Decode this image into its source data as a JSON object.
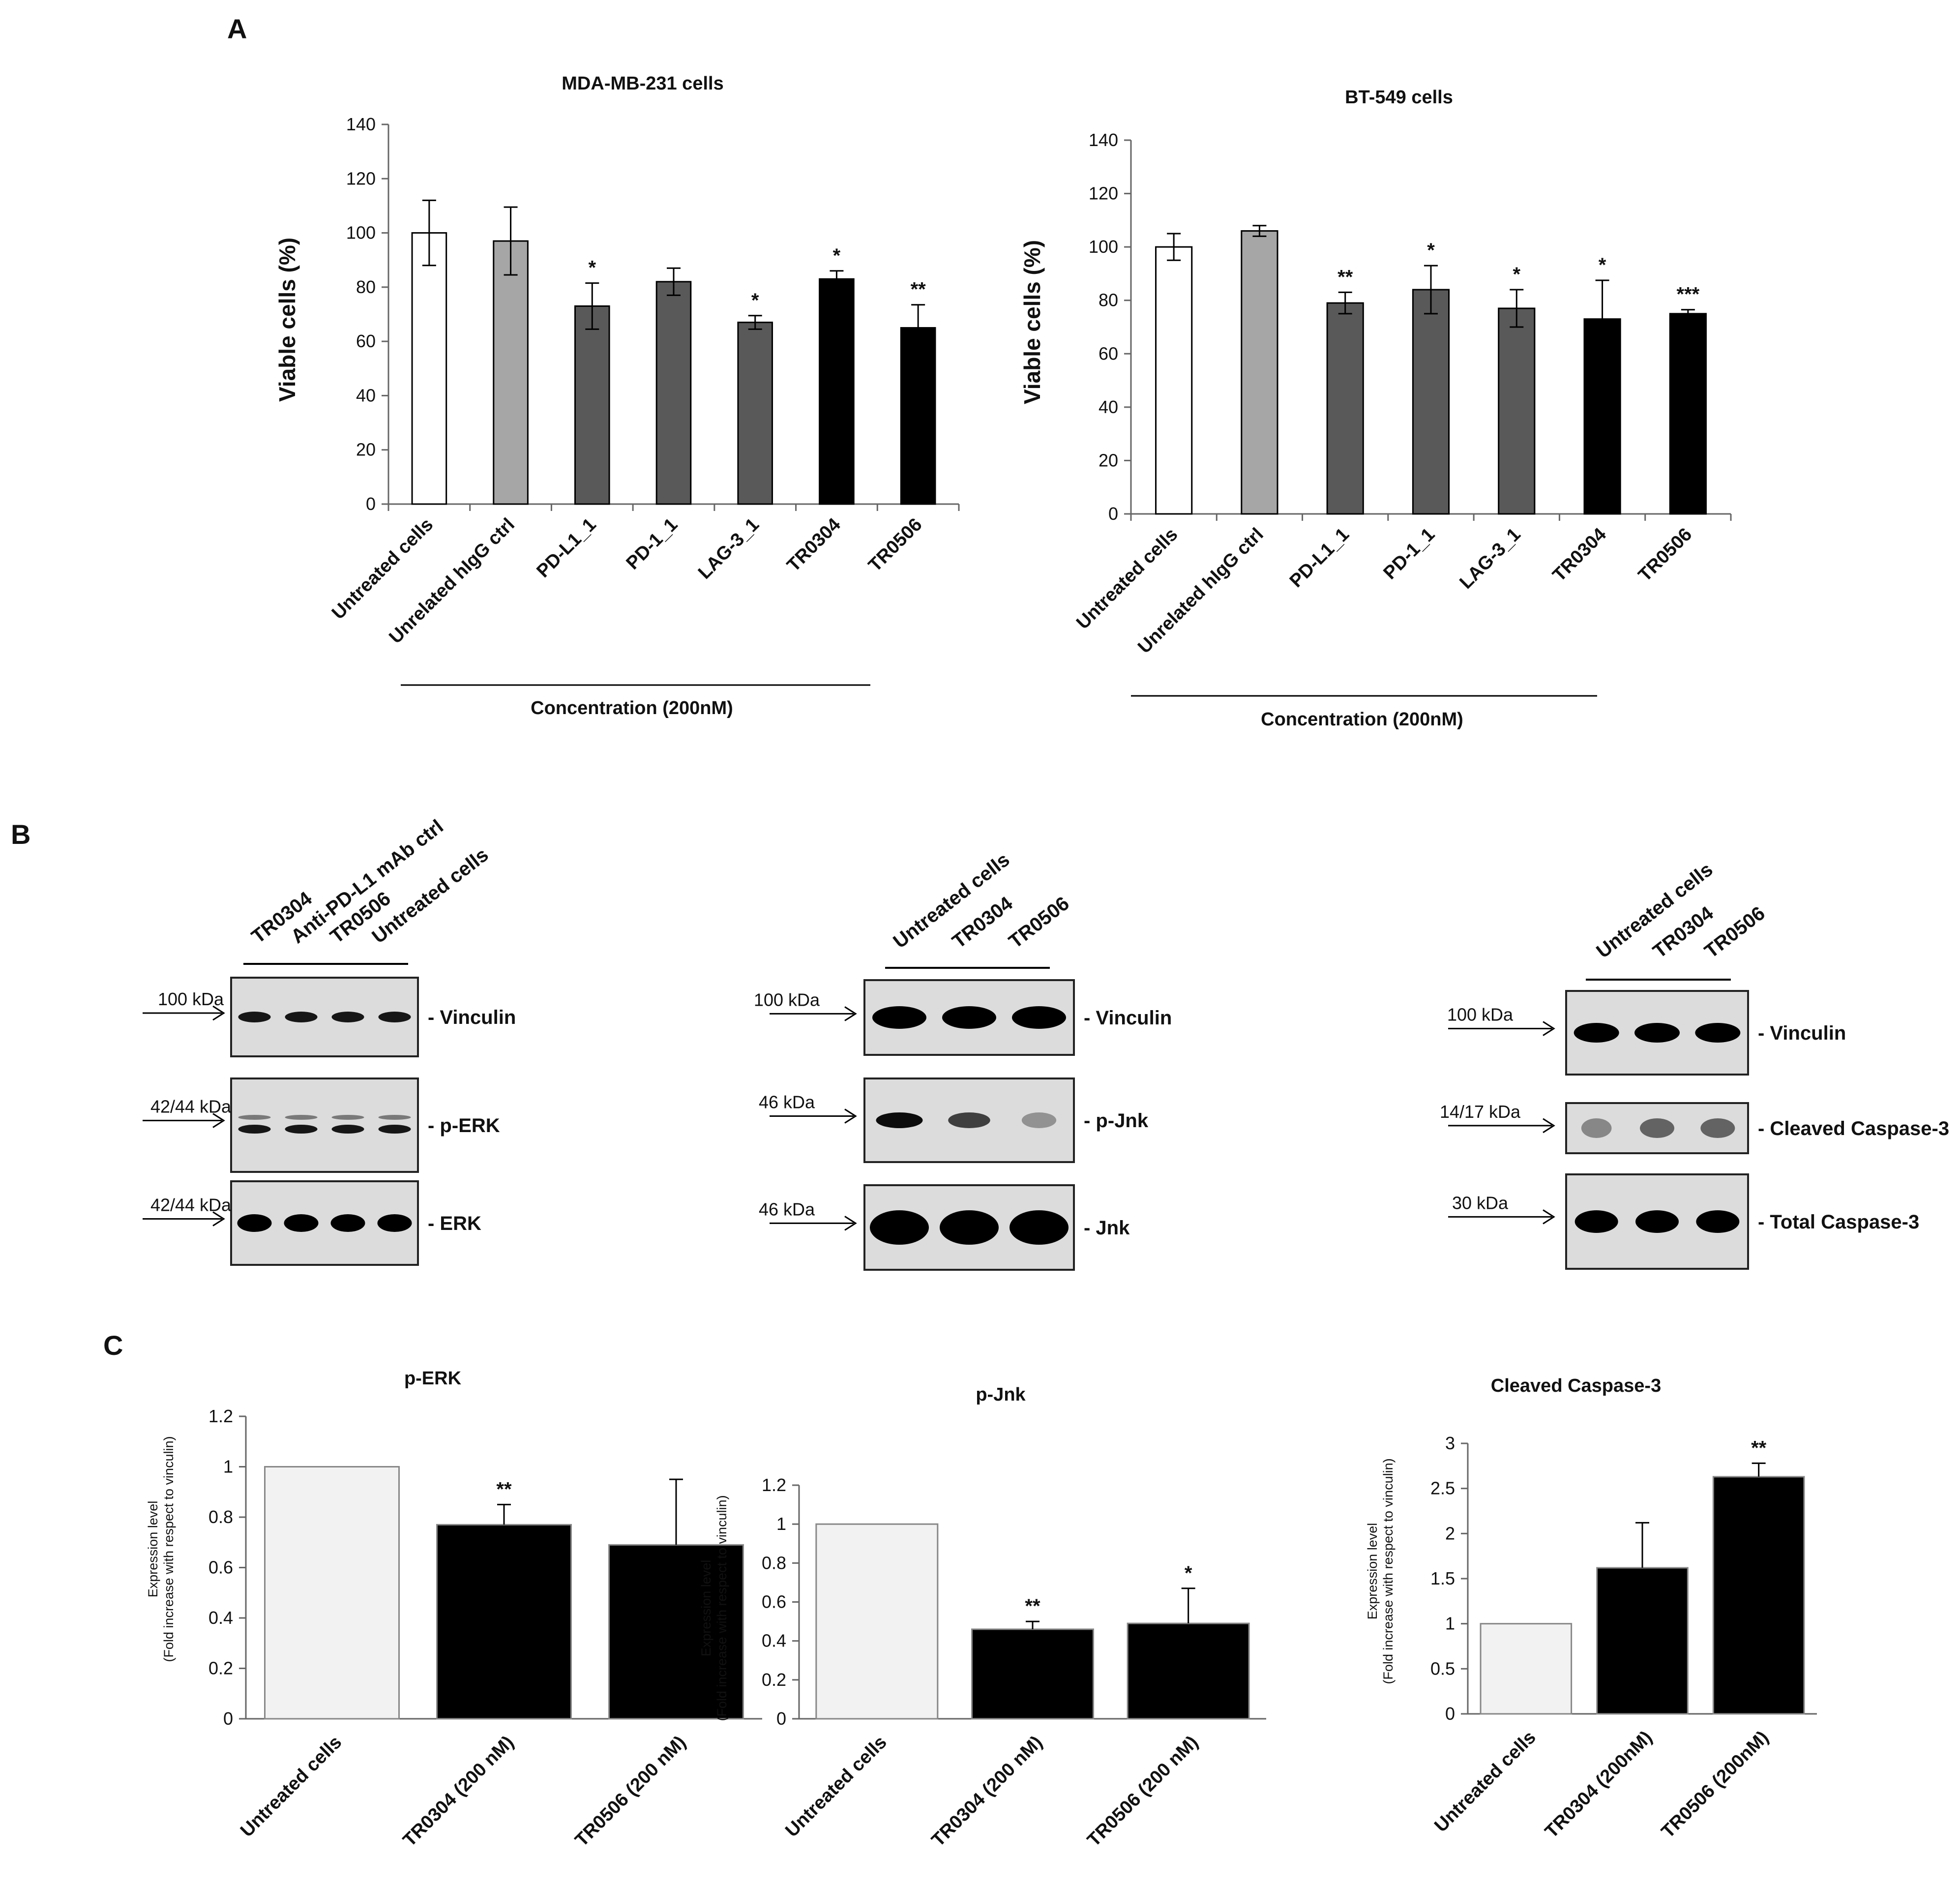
{
  "panels": {
    "A": "A",
    "B": "B",
    "C": "C"
  },
  "chart_data": [
    {
      "id": "mda",
      "type": "bar",
      "title": "MDA-MB-231 cells",
      "ylabel": "Viable cells (%)",
      "xlabel": "Concentration (200nM)",
      "categories": [
        "Untreated cells",
        "Unrelated hIgG ctrl",
        "PD-L1_1",
        "PD-1_1",
        "LAG-3_1",
        "TR0304",
        "TR0506"
      ],
      "values": [
        100,
        97,
        73,
        82,
        67,
        83,
        65
      ],
      "errors": [
        12,
        12.5,
        8.5,
        5,
        2.5,
        3,
        8.5
      ],
      "significance": [
        "",
        "",
        "*",
        "",
        "*",
        "*",
        "**"
      ],
      "bar_colors": [
        "#ffffff",
        "#a6a6a6",
        "#595959",
        "#595959",
        "#595959",
        "#000000",
        "#000000"
      ],
      "ylim": [
        0,
        140
      ],
      "yticks": [
        0,
        20,
        40,
        60,
        80,
        100,
        120,
        140
      ],
      "grid": false,
      "legend": "none"
    },
    {
      "id": "bt",
      "type": "bar",
      "title": "BT-549 cells",
      "ylabel": "Viable cells (%)",
      "xlabel": "Concentration (200nM)",
      "categories": [
        "Untreated cells",
        "Unrelated hIgG ctrl",
        "PD-L1_1",
        "PD-1_1",
        "LAG-3_1",
        "TR0304",
        "TR0506"
      ],
      "values": [
        100,
        106,
        79,
        84,
        77,
        73,
        75
      ],
      "errors": [
        5,
        2,
        4,
        9,
        7,
        14.5,
        1.5
      ],
      "significance": [
        "",
        "",
        "**",
        "*",
        "*",
        "*",
        "***"
      ],
      "bar_colors": [
        "#ffffff",
        "#a6a6a6",
        "#595959",
        "#595959",
        "#595959",
        "#000000",
        "#000000"
      ],
      "ylim": [
        0,
        140
      ],
      "yticks": [
        0,
        20,
        40,
        60,
        80,
        100,
        120,
        140
      ],
      "grid": false,
      "legend": "none"
    },
    {
      "id": "perk",
      "type": "bar",
      "title": "p-ERK",
      "ylabel": "Expression level",
      "ylabel2": "(Fold increase with respect to vinculin)",
      "categories": [
        "Untreated cells",
        "TR0304 (200 nM)",
        "TR0506 (200 nM)"
      ],
      "values": [
        1.0,
        0.77,
        0.69
      ],
      "errors": [
        0,
        0.08,
        0.26
      ],
      "significance": [
        "",
        "**",
        ""
      ],
      "bar_colors": [
        "#f2f2f2",
        "#000000",
        "#000000"
      ],
      "ylim": [
        0,
        1.2
      ],
      "yticks": [
        0,
        0.2,
        0.4,
        0.6,
        0.8,
        1,
        1.2
      ],
      "grid": false,
      "legend": "none"
    },
    {
      "id": "pjnk",
      "type": "bar",
      "title": "p-Jnk",
      "ylabel": "Expression level",
      "ylabel2": "(Fold increase with respect to vinculin)",
      "categories": [
        "Untreated cells",
        "TR0304 (200 nM)",
        "TR0506 (200 nM)"
      ],
      "values": [
        1.0,
        0.46,
        0.49
      ],
      "errors": [
        0,
        0.04,
        0.18
      ],
      "significance": [
        "",
        "**",
        "*"
      ],
      "bar_colors": [
        "#f2f2f2",
        "#000000",
        "#000000"
      ],
      "ylim": [
        0,
        1.2
      ],
      "yticks": [
        0,
        0.2,
        0.4,
        0.6,
        0.8,
        1,
        1.2
      ],
      "grid": false,
      "legend": "none"
    },
    {
      "id": "casp",
      "type": "bar",
      "title": "Cleaved Caspase-3",
      "ylabel": "Expression level",
      "ylabel2": "(Fold increase with respect to vinculin)",
      "categories": [
        "Untreated cells",
        "TR0304 (200nM)",
        "TR0506 (200nM)"
      ],
      "values": [
        1.0,
        1.62,
        2.63
      ],
      "errors": [
        0,
        0.5,
        0.15
      ],
      "significance": [
        "",
        "",
        "**"
      ],
      "bar_colors": [
        "#f2f2f2",
        "#000000",
        "#000000"
      ],
      "ylim": [
        0,
        3
      ],
      "yticks": [
        0,
        0.5,
        1,
        1.5,
        2,
        2.5,
        3
      ],
      "grid": false,
      "legend": "none"
    }
  ],
  "blots": [
    {
      "id": "blot1",
      "lanes": [
        "TR0304",
        "Anti-PD-L1 mAb ctrl",
        "TR0506",
        "Untreated cells"
      ],
      "rows": [
        {
          "kda": "100 kDa",
          "label": "- Vinculin"
        },
        {
          "kda": "42/44 kDa",
          "label": "- p-ERK"
        },
        {
          "kda": "42/44 kDa",
          "label": "- ERK"
        }
      ]
    },
    {
      "id": "blot2",
      "lanes": [
        "Untreated cells",
        "TR0304",
        "TR0506"
      ],
      "rows": [
        {
          "kda": "100 kDa",
          "label": "- Vinculin"
        },
        {
          "kda": "46 kDa",
          "label": "- p-Jnk"
        },
        {
          "kda": "46 kDa",
          "label": "- Jnk"
        }
      ]
    },
    {
      "id": "blot3",
      "lanes": [
        "Untreated cells",
        "TR0304",
        "TR0506"
      ],
      "rows": [
        {
          "kda": "100 kDa",
          "label": "- Vinculin"
        },
        {
          "kda": "14/17 kDa",
          "label": "- Cleaved Caspase-3"
        },
        {
          "kda": "30 kDa",
          "label": "- Total Caspase-3"
        }
      ]
    }
  ]
}
